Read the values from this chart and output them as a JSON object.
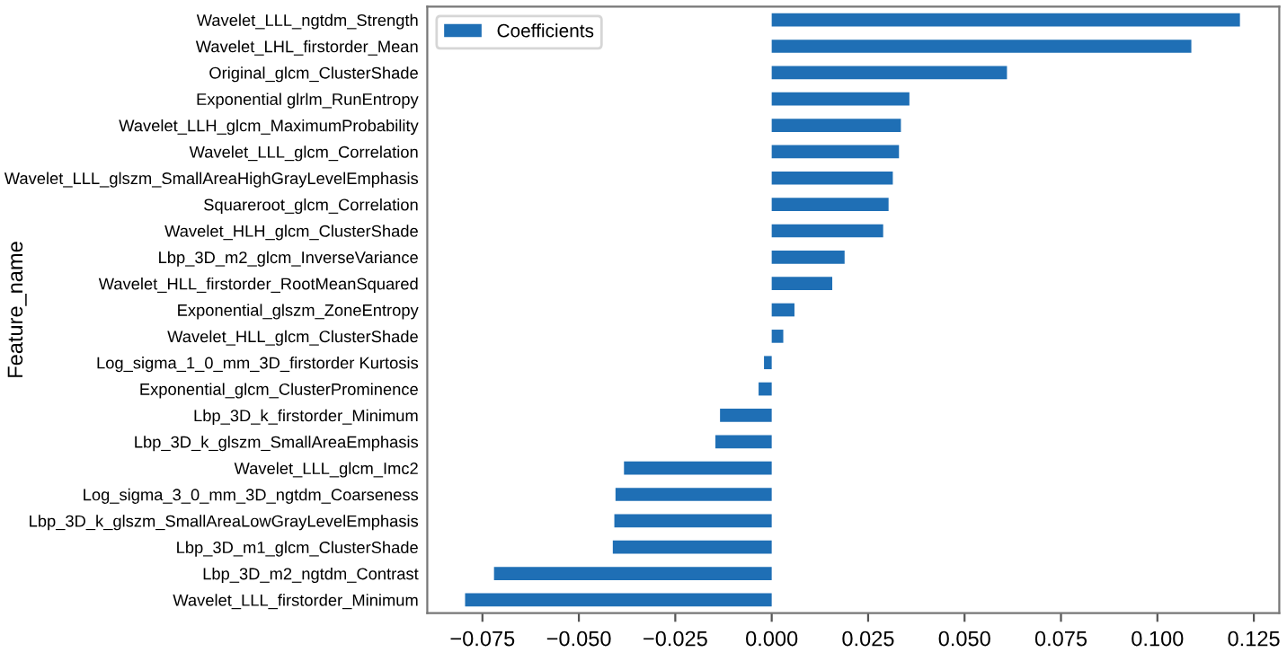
{
  "chart_data": {
    "type": "bar",
    "orientation": "horizontal",
    "ylabel": "Feature_name",
    "categories": [
      "Wavelet_LLL_ngtdm_Strength",
      "Wavelet_LHL_firstorder_Mean",
      "Original_glcm_ClusterShade",
      "Exponential glrlm_RunEntropy",
      "Wavelet_LLH_glcm_MaximumProbability",
      "Wavelet_LLL_glcm_Correlation",
      "Wavelet_LLL_glszm_SmallAreaHighGrayLevelEmphasis",
      "Squareroot_glcm_Correlation",
      "Wavelet_HLH_glcm_ClusterShade",
      "Lbp_3D_m2_glcm_InverseVariance",
      "Wavelet_HLL_firstorder_RootMeanSquared",
      "Exponential_glszm_ZoneEntropy",
      "Wavelet_HLL_glcm_ClusterShade",
      "Log_sigma_1_0_mm_3D_firstorder Kurtosis",
      "Exponential_glcm_ClusterProminence",
      "Lbp_3D_k_firstorder_Minimum",
      "Lbp_3D_k_glszm_SmallAreaEmphasis",
      "Wavelet_LLL_glcm_Imc2",
      "Log_sigma_3_0_mm_3D_ngtdm_Coarseness",
      "Lbp_3D_k_glszm_SmallAreaLowGrayLevelEmphasis",
      "Lbp_3D_m1_glcm_ClusterShade",
      "Lbp_3D_m2_ngtdm_Contrast",
      "Wavelet_LLL_firstorder_Minimum"
    ],
    "series": [
      {
        "name": "Coefficients",
        "color": "#1f6fb5",
        "values": [
          0.1214,
          0.1088,
          0.061,
          0.0357,
          0.0335,
          0.033,
          0.0314,
          0.0303,
          0.0289,
          0.0189,
          0.0157,
          0.0059,
          0.003,
          -0.002,
          -0.0034,
          -0.0134,
          -0.0146,
          -0.0383,
          -0.0405,
          -0.0408,
          -0.0412,
          -0.072,
          -0.0795
        ]
      }
    ],
    "xlim": [
      -0.0893,
      0.1316
    ],
    "xticks": [
      {
        "value": -0.075,
        "label": "−0.075"
      },
      {
        "value": -0.05,
        "label": "−0.050"
      },
      {
        "value": -0.025,
        "label": "−0.025"
      },
      {
        "value": 0,
        "label": "0.000"
      },
      {
        "value": 0.025,
        "label": "0.025"
      },
      {
        "value": 0.05,
        "label": "0.050"
      },
      {
        "value": 0.075,
        "label": "0.075"
      },
      {
        "value": 0.1,
        "label": "0.100"
      },
      {
        "value": 0.125,
        "label": "0.125"
      }
    ],
    "legend": "top left",
    "grid": false
  }
}
